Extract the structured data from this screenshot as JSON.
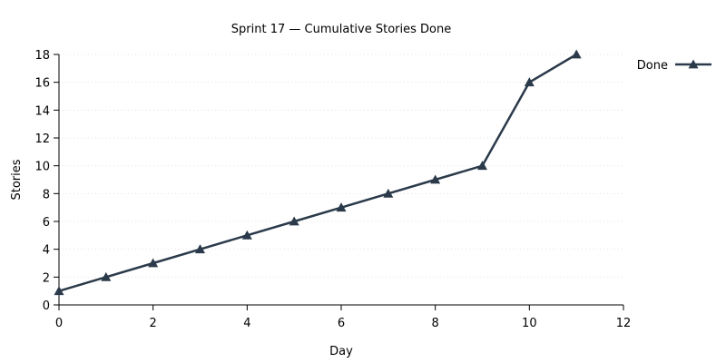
{
  "chart_data": {
    "type": "line",
    "title": "Sprint 17 — Cumulative Stories Done",
    "xlabel": "Day",
    "ylabel": "Stories",
    "xlim": [
      0,
      12
    ],
    "ylim": [
      0,
      18
    ],
    "x_ticks": [
      0,
      2,
      4,
      6,
      8,
      10,
      12
    ],
    "y_ticks": [
      0,
      2,
      4,
      6,
      8,
      10,
      12,
      14,
      16,
      18
    ],
    "grid": "horizontal-dotted",
    "legend_position": "top-right-outside",
    "series": [
      {
        "name": "Done",
        "color": "#2b3a4a",
        "marker": "triangle",
        "x": [
          0,
          1,
          2,
          3,
          4,
          5,
          6,
          7,
          8,
          9,
          10,
          11
        ],
        "y": [
          1,
          2,
          3,
          4,
          5,
          6,
          7,
          8,
          9,
          10,
          16,
          18
        ]
      }
    ]
  }
}
